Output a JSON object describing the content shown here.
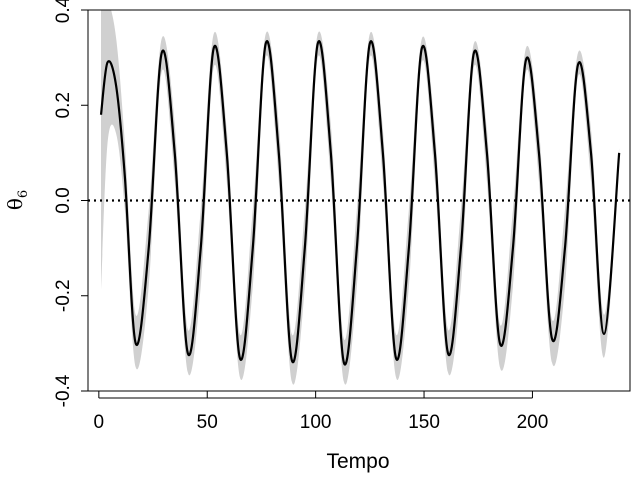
{
  "chart_data": {
    "type": "line",
    "title": "",
    "xlabel": "Tempo",
    "ylabel_symbol": "θ",
    "ylabel_subscript": "6",
    "xlim": [
      -5,
      245
    ],
    "ylim": [
      -0.4,
      0.4
    ],
    "xticks": [
      0,
      50,
      100,
      150,
      200
    ],
    "xtick_labels": [
      "0",
      "50",
      "100",
      "150",
      "200"
    ],
    "yticks": [
      -0.4,
      -0.2,
      0.0,
      0.2,
      0.4
    ],
    "ytick_labels": [
      "-0.4",
      "-0.2",
      "0.0",
      "0.2",
      "0.4"
    ],
    "reference_line": {
      "y": 0.0,
      "style": "dotted"
    },
    "series": [
      {
        "x": [
          1,
          4,
          8,
          12,
          17,
          23,
          29,
          35,
          41,
          47,
          53,
          59,
          65,
          71,
          77,
          83,
          89,
          95,
          101,
          107,
          113,
          119,
          125,
          131,
          137,
          143,
          149,
          155,
          161,
          167,
          173,
          179,
          185,
          191,
          197,
          203,
          209,
          215,
          221,
          227,
          233,
          240
        ],
        "y": [
          0.18,
          0.29,
          0.24,
          0.05,
          -0.3,
          -0.1,
          0.31,
          0.1,
          -0.32,
          -0.1,
          0.32,
          0.1,
          -0.33,
          -0.1,
          0.33,
          0.1,
          -0.335,
          -0.1,
          0.33,
          0.1,
          -0.34,
          -0.1,
          0.33,
          0.1,
          -0.33,
          -0.1,
          0.32,
          0.1,
          -0.32,
          -0.1,
          0.31,
          0.1,
          -0.3,
          -0.1,
          0.295,
          0.1,
          -0.29,
          -0.1,
          0.285,
          0.1,
          -0.28,
          0.1
        ],
        "band_upper": [
          0.4,
          0.42,
          0.34,
          0.12,
          -0.24,
          -0.02,
          0.34,
          0.16,
          -0.27,
          -0.02,
          0.35,
          0.15,
          -0.28,
          -0.02,
          0.35,
          0.16,
          -0.28,
          -0.02,
          0.35,
          0.16,
          -0.29,
          -0.02,
          0.35,
          0.15,
          -0.28,
          -0.02,
          0.34,
          0.15,
          -0.27,
          -0.02,
          0.33,
          0.15,
          -0.26,
          -0.02,
          0.32,
          0.15,
          -0.25,
          -0.02,
          0.31,
          0.15,
          -0.24,
          0.11
        ],
        "band_lower": [
          -0.19,
          0.12,
          0.14,
          -0.02,
          -0.35,
          -0.18,
          0.27,
          0.04,
          -0.36,
          -0.18,
          0.28,
          0.04,
          -0.37,
          -0.18,
          0.3,
          0.04,
          -0.38,
          -0.18,
          0.3,
          0.04,
          -0.38,
          -0.18,
          0.3,
          0.04,
          -0.37,
          -0.18,
          0.29,
          0.04,
          -0.36,
          -0.18,
          0.28,
          0.04,
          -0.35,
          -0.18,
          0.27,
          0.04,
          -0.34,
          -0.18,
          0.26,
          0.04,
          -0.33,
          0.08
        ],
        "line_color": "#000000",
        "band_color": "#d0d0d0"
      }
    ]
  }
}
